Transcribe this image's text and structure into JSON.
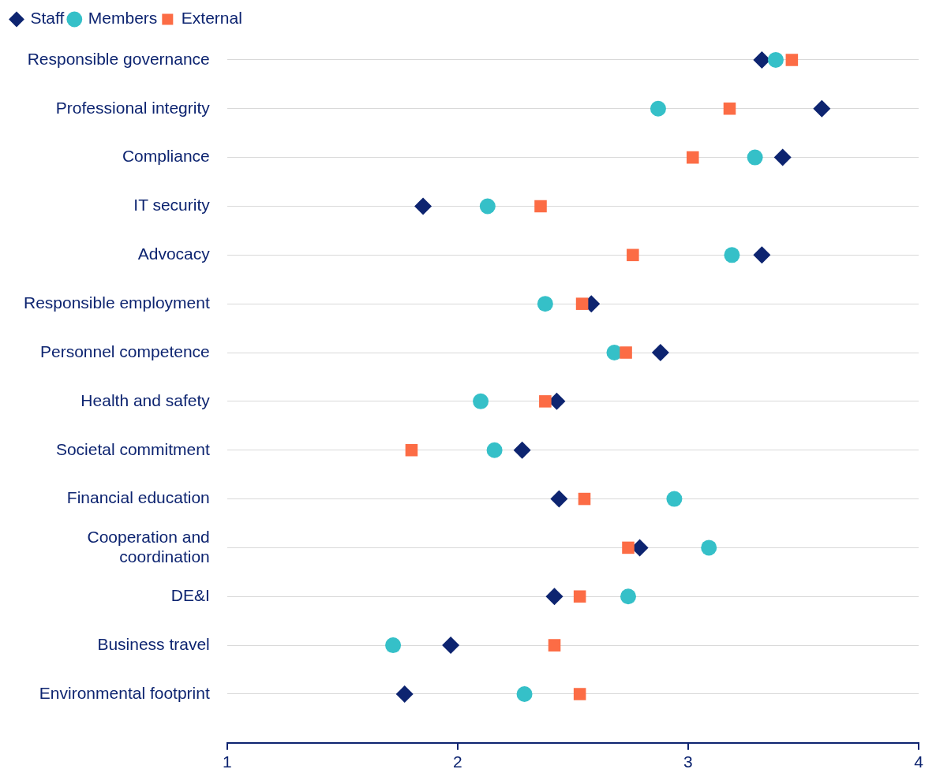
{
  "chart_data": {
    "type": "scatter",
    "categories": [
      "Responsible governance",
      "Professional integrity",
      "Compliance",
      "IT security",
      "Advocacy",
      "Responsible employment",
      "Personnel competence",
      "Health and safety",
      "Societal commitment",
      "Financial education",
      "Cooperation and coordination",
      "DE&I",
      "Business travel",
      "Environmental footprint"
    ],
    "orientation": "horizontal",
    "xlim": [
      1,
      4
    ],
    "xticks": [
      1,
      2,
      3,
      4
    ],
    "grid": "y",
    "legend": "top left",
    "series": [
      {
        "name": "Staff",
        "color": "#0d2470",
        "marker": "diamond",
        "values": [
          3.32,
          3.58,
          3.41,
          1.85,
          3.32,
          2.58,
          2.88,
          2.43,
          2.28,
          2.44,
          2.79,
          2.42,
          1.97,
          1.77
        ]
      },
      {
        "name": "Members",
        "color": "#35c0c8",
        "marker": "circle",
        "values": [
          3.38,
          2.87,
          3.29,
          2.13,
          3.19,
          2.38,
          2.68,
          2.1,
          2.16,
          2.94,
          3.09,
          2.74,
          1.72,
          2.29
        ]
      },
      {
        "name": "External",
        "color": "#fc6c45",
        "marker": "square",
        "values": [
          3.45,
          3.18,
          3.02,
          2.36,
          2.76,
          2.54,
          2.73,
          2.38,
          1.8,
          2.55,
          2.74,
          2.53,
          2.42,
          2.53
        ]
      }
    ]
  }
}
